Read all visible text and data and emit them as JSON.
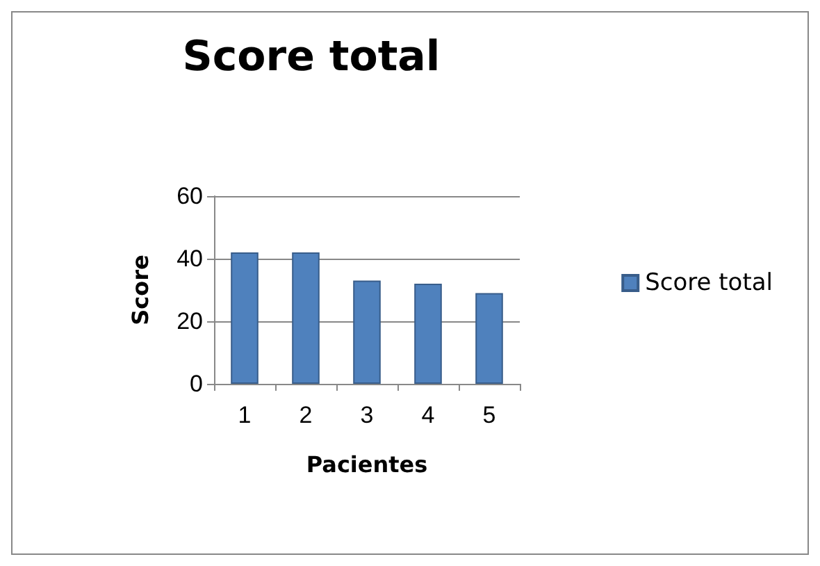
{
  "chart_data": {
    "type": "bar",
    "title": "Score total",
    "xlabel": "Pacientes",
    "ylabel": "Score",
    "categories": [
      "1",
      "2",
      "3",
      "4",
      "5"
    ],
    "series": [
      {
        "name": "Score total",
        "color": "#4f81bd",
        "values": [
          42,
          42,
          33,
          32,
          29
        ]
      }
    ],
    "ylim": [
      0,
      60
    ],
    "yticks": [
      0,
      20,
      40,
      60
    ],
    "grid": "y",
    "legend": "right"
  }
}
